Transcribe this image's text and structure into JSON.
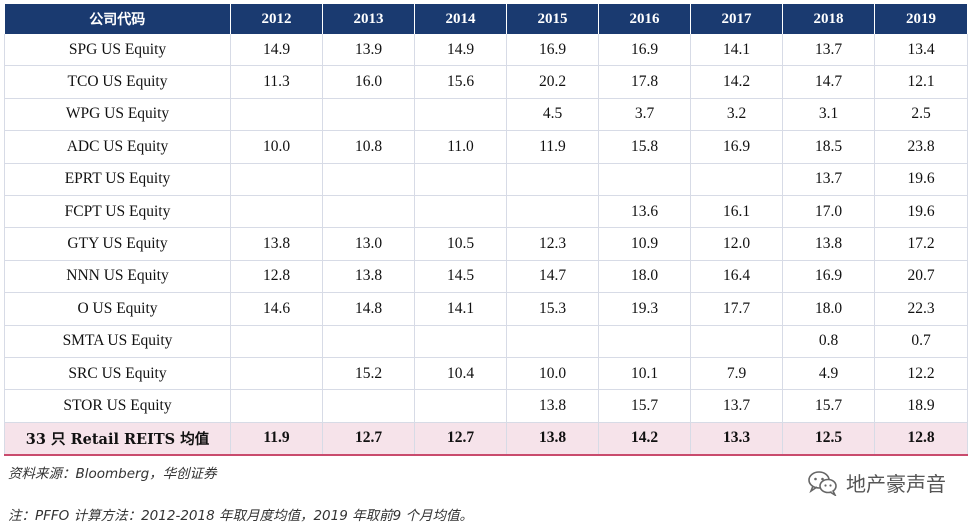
{
  "table": {
    "headers": [
      "公司代码",
      "2012",
      "2013",
      "2014",
      "2015",
      "2016",
      "2017",
      "2018",
      "2019"
    ],
    "rows": [
      [
        "SPG US Equity",
        "14.9",
        "13.9",
        "14.9",
        "16.9",
        "16.9",
        "14.1",
        "13.7",
        "13.4"
      ],
      [
        "TCO US Equity",
        "11.3",
        "16.0",
        "15.6",
        "20.2",
        "17.8",
        "14.2",
        "14.7",
        "12.1"
      ],
      [
        "WPG US Equity",
        "",
        "",
        "",
        "4.5",
        "3.7",
        "3.2",
        "3.1",
        "2.5"
      ],
      [
        "ADC US Equity",
        "10.0",
        "10.8",
        "11.0",
        "11.9",
        "15.8",
        "16.9",
        "18.5",
        "23.8"
      ],
      [
        "EPRT US Equity",
        "",
        "",
        "",
        "",
        "",
        "",
        "13.7",
        "19.6"
      ],
      [
        "FCPT US Equity",
        "",
        "",
        "",
        "",
        "13.6",
        "16.1",
        "17.0",
        "19.6"
      ],
      [
        "GTY US Equity",
        "13.8",
        "13.0",
        "10.5",
        "12.3",
        "10.9",
        "12.0",
        "13.8",
        "17.2"
      ],
      [
        "NNN US Equity",
        "12.8",
        "13.8",
        "14.5",
        "14.7",
        "18.0",
        "16.4",
        "16.9",
        "20.7"
      ],
      [
        "O US Equity",
        "14.6",
        "14.8",
        "14.1",
        "15.3",
        "19.3",
        "17.7",
        "18.0",
        "22.3"
      ],
      [
        "SMTA US Equity",
        "",
        "",
        "",
        "",
        "",
        "",
        "0.8",
        "0.7"
      ],
      [
        "SRC US Equity",
        "",
        "15.2",
        "10.4",
        "10.0",
        "10.1",
        "7.9",
        "4.9",
        "12.2"
      ],
      [
        "STOR US Equity",
        "",
        "",
        "",
        "13.8",
        "15.7",
        "13.7",
        "15.7",
        "18.9"
      ]
    ],
    "summary": [
      "33 只 Retail REITS 均值",
      "11.9",
      "12.7",
      "12.7",
      "13.8",
      "14.2",
      "13.3",
      "12.5",
      "12.8"
    ]
  },
  "source": "资料来源：Bloomberg，华创证券",
  "note": "注：PFFO 计算方法：2012-2018 年取月度均值，2019 年取前9 个月均值。",
  "watermark": {
    "text": "地产豪声音",
    "icon": "wechat-icon"
  },
  "colors": {
    "header_bg": "#1a3a70",
    "summary_bg": "#f6e3ea",
    "summary_border": "#c94b6d"
  }
}
